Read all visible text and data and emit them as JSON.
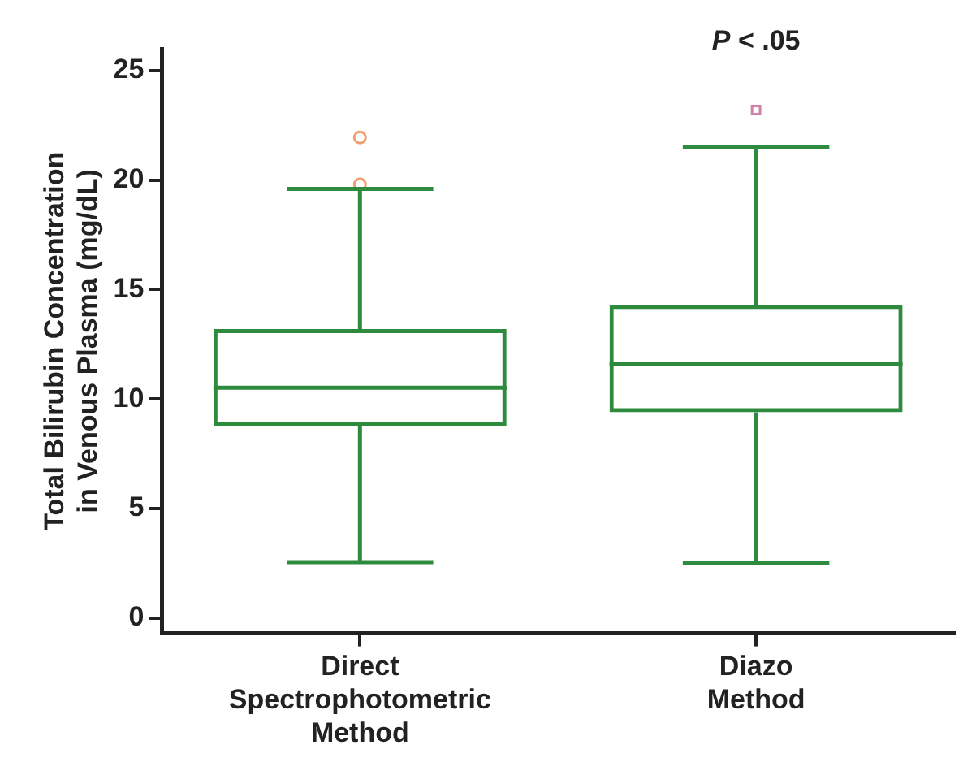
{
  "chart_data": {
    "type": "box",
    "ylabel": "Total Bilirubin Concentration\nin Venous Plasma (mg/dL)",
    "categories": [
      "Direct Spectrophotometric Method",
      "Diazo Method"
    ],
    "ylim": [
      -0.7,
      26
    ],
    "yticks": [
      0,
      5,
      10,
      15,
      20,
      25
    ],
    "grid": false,
    "legend": false,
    "series": [
      {
        "color": "#2e8b3e",
        "boxes": [
          {
            "low": 2.55,
            "q1": 8.78,
            "median": 10.52,
            "q3": 13.2,
            "high": 19.6
          },
          {
            "low": 2.5,
            "q1": 9.4,
            "median": 11.6,
            "q3": 14.3,
            "high": 21.5
          }
        ]
      },
      {
        "type": "scatter",
        "color": "#f0a070",
        "marker": "circle",
        "x": [
          "Direct Spectrophotometric Method",
          "Direct Spectrophotometric Method"
        ],
        "values": [
          21.95,
          19.8
        ]
      },
      {
        "type": "scatter",
        "color": "#d080a8",
        "marker": "square",
        "x": [
          "Diazo Method"
        ],
        "values": [
          23.2
        ]
      }
    ],
    "annotations": [
      "P < .05"
    ]
  }
}
